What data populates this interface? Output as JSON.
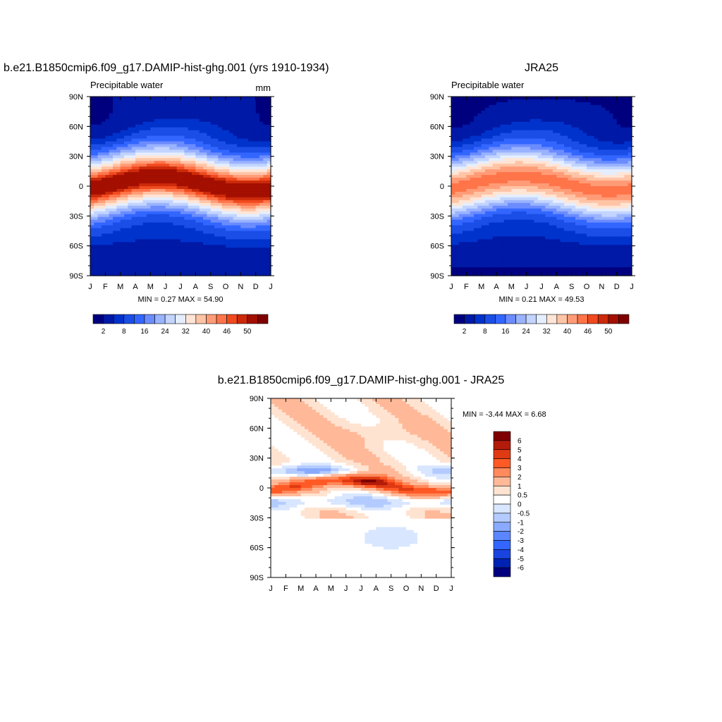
{
  "chart_data": [
    {
      "type": "heatmap",
      "title": "b.e21.B1850cmip6.f09_g17.DAMIP-hist-ghg.001 (yrs 1910-1934)",
      "left_label": "Precipitable water",
      "units": "mm",
      "x_ticks": [
        "J",
        "F",
        "M",
        "A",
        "M",
        "J",
        "J",
        "A",
        "S",
        "O",
        "N",
        "D",
        "J"
      ],
      "y_ticks": [
        "90N",
        "60N",
        "30N",
        "0",
        "30S",
        "60S",
        "90S"
      ],
      "stats": "MIN =   0.27 MAX =  54.90",
      "colorbar_labels": [
        "2",
        "8",
        "16",
        "24",
        "32",
        "40",
        "46",
        "50"
      ],
      "colorbar_levels": [
        2,
        5,
        8,
        12,
        16,
        20,
        24,
        28,
        32,
        36,
        40,
        43,
        46,
        48,
        50
      ],
      "field": {
        "itcz_lat_jan": -5,
        "itcz_lat_jul": 10,
        "peak_value": 54.9,
        "min_value": 0.27
      }
    },
    {
      "type": "heatmap",
      "title": "JRA25",
      "left_label": "Precipitable water",
      "x_ticks": [
        "J",
        "F",
        "M",
        "A",
        "M",
        "J",
        "J",
        "A",
        "S",
        "O",
        "N",
        "D",
        "J"
      ],
      "y_ticks": [
        "90N",
        "60N",
        "30N",
        "0",
        "30S",
        "60S",
        "90S"
      ],
      "stats": "MIN =   0.21 MAX =  49.53",
      "colorbar_labels": [
        "2",
        "8",
        "16",
        "24",
        "32",
        "40",
        "46",
        "50"
      ],
      "colorbar_levels": [
        2,
        5,
        8,
        12,
        16,
        20,
        24,
        28,
        32,
        36,
        40,
        43,
        46,
        48,
        50
      ],
      "field": {
        "itcz_lat_jan": -5,
        "itcz_lat_jul": 10,
        "peak_value": 49.53,
        "min_value": 0.21
      }
    },
    {
      "type": "heatmap",
      "title": "b.e21.B1850cmip6.f09_g17.DAMIP-hist-ghg.001 - JRA25",
      "x_ticks": [
        "J",
        "F",
        "M",
        "A",
        "M",
        "J",
        "J",
        "A",
        "S",
        "O",
        "N",
        "D",
        "J"
      ],
      "y_ticks": [
        "90N",
        "60N",
        "30N",
        "0",
        "30S",
        "60S",
        "90S"
      ],
      "stats": "MIN =  -3.44 MAX =   6.68",
      "colorbar_labels": [
        "6",
        "5",
        "4",
        "3",
        "2",
        "1",
        "0.5",
        "0",
        "-0.5",
        "-1",
        "-2",
        "-3",
        "-4",
        "-5",
        "-6"
      ],
      "colorbar_levels": [
        6,
        5,
        4,
        3,
        2,
        1,
        0.5,
        0,
        -0.5,
        -1,
        -2,
        -3,
        -4,
        -5,
        -6
      ],
      "field": {
        "min_value": -3.44,
        "max_value": 6.68
      }
    }
  ],
  "colors": {
    "seq": [
      "#00007f",
      "#0019a6",
      "#0033cc",
      "#1a4ee6",
      "#3366ff",
      "#6b8cff",
      "#99b3ff",
      "#c2d4ff",
      "#e5eeff",
      "#ffe5d5",
      "#ffc4a6",
      "#ff9c77",
      "#ff7449",
      "#f04a1f",
      "#cc2a0a",
      "#a30f00",
      "#7f0000"
    ],
    "div": [
      "#7f0000",
      "#b31b0a",
      "#e03a13",
      "#ff5a26",
      "#ff8a5c",
      "#ffb999",
      "#ffe3d1",
      "#ffffff",
      "#d9e6ff",
      "#b3cbff",
      "#8aaaff",
      "#5b86ff",
      "#3366ff",
      "#1a44e0",
      "#0022b3",
      "#00007f"
    ]
  }
}
